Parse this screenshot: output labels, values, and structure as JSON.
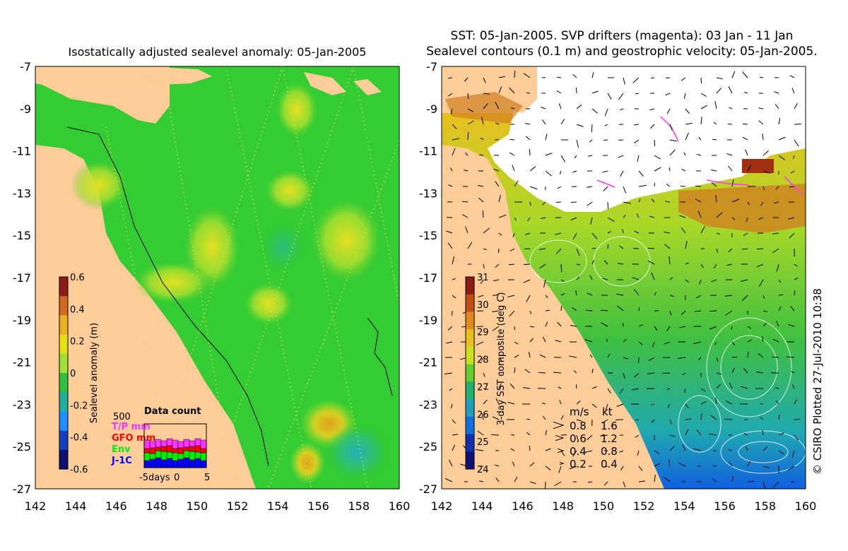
{
  "left_panel": {
    "title": "Isostatically adjusted sealevel anomaly: 05-Jan-2005",
    "x_ticks": [
      "142",
      "144",
      "146",
      "148",
      "150",
      "152",
      "154",
      "156",
      "158",
      "160"
    ],
    "y_ticks": [
      "-7",
      "-9",
      "-11",
      "-13",
      "-15",
      "-17",
      "-19",
      "-21",
      "-23",
      "-25",
      "-27"
    ],
    "colorbar": {
      "label": "Sealevel anomaly (m)",
      "ticks": [
        "0.6",
        "0.4",
        "0.2",
        "0",
        "-0.2",
        "-0.4",
        "-0.6"
      ],
      "colors": [
        "#8b1a1a",
        "#d2691e",
        "#e8b020",
        "#e6e010",
        "#a0e030",
        "#30c040",
        "#20b0a0",
        "#1e90ff",
        "#1040c0",
        "#101070"
      ]
    },
    "data_count": {
      "title": "Data count",
      "scale_label": "500",
      "legend": [
        {
          "label": "T/P mm",
          "color": "#ff33ff"
        },
        {
          "label": "GFO mm",
          "color": "#ff0000"
        },
        {
          "label": "Env",
          "color": "#00ee00"
        },
        {
          "label": "J-1C",
          "color": "#0000ff"
        }
      ],
      "x_labels": [
        "-5days",
        "0",
        "5"
      ]
    }
  },
  "right_panel": {
    "title_line1": "SST: 05-Jan-2005. SVP drifters (magenta): 03 Jan - 11 Jan",
    "title_line2": "Sealevel contours (0.1 m) and geostrophic velocity: 05-Jan-2005.",
    "x_ticks": [
      "142",
      "144",
      "146",
      "148",
      "150",
      "152",
      "154",
      "156",
      "158",
      "160"
    ],
    "y_ticks": [
      "-7",
      "-9",
      "-11",
      "-13",
      "-15",
      "-17",
      "-19",
      "-21",
      "-23",
      "-25",
      "-27"
    ],
    "colorbar": {
      "label": "3-day SST composite (deg C)",
      "ticks": [
        "31",
        "30",
        "29",
        "28",
        "27",
        "26",
        "25",
        "24"
      ],
      "colors": [
        "#8b1a1a",
        "#c0501a",
        "#e08a20",
        "#e8c020",
        "#c8e020",
        "#60d030",
        "#20b070",
        "#20a0c0",
        "#1070e0",
        "#1030b0",
        "#101070"
      ]
    },
    "velocity_legend": {
      "unit_ms": "m/s",
      "unit_kt": "kt",
      "rows": [
        {
          "ms": "0.8",
          "kt": "1.6"
        },
        {
          "ms": "0.6",
          "kt": "1.2"
        },
        {
          "ms": "0.4",
          "kt": "0.8"
        },
        {
          "ms": "0.2",
          "kt": "0.4"
        }
      ]
    }
  },
  "credit": "© CSIRO Plotted 27-Jul-2010 10:38",
  "land_color": "#fccc99",
  "ocean_color": "#33cc33"
}
